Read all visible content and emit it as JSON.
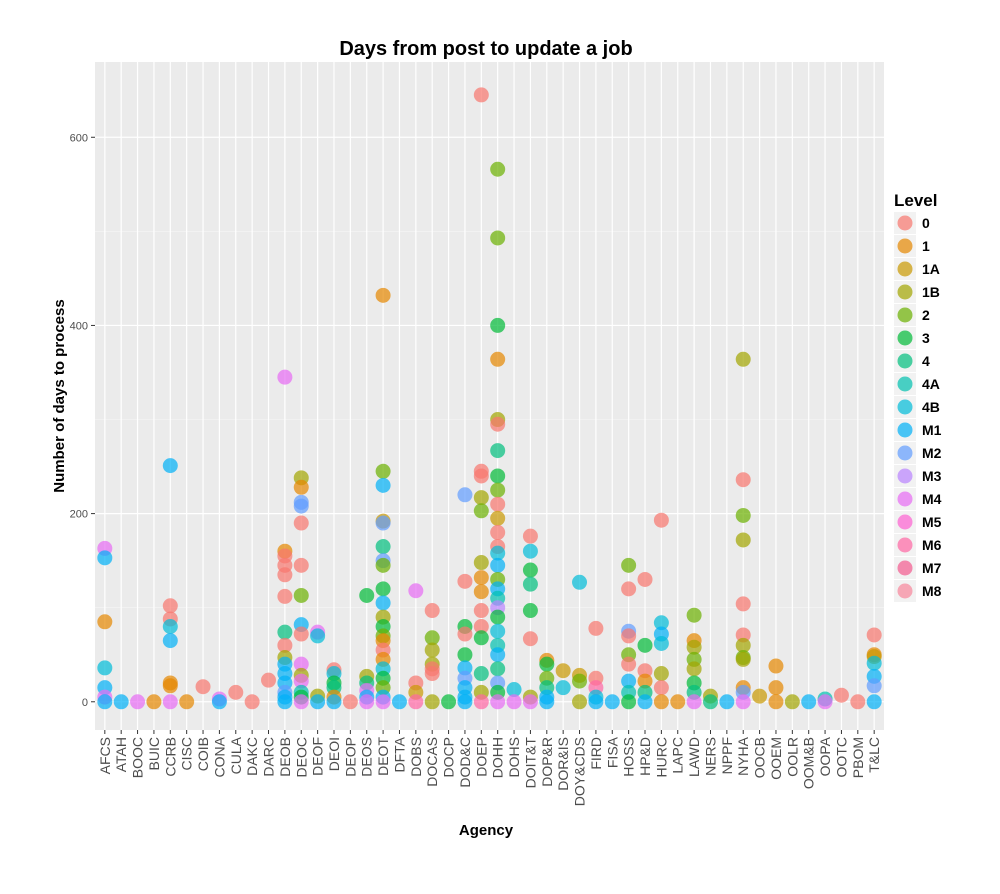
{
  "chart_data": {
    "type": "scatter",
    "title": "Days from post to update a job",
    "xlabel": "Agency",
    "ylabel": "Number of days to process",
    "ylim": [
      -30,
      680
    ],
    "yticks": [
      0,
      200,
      400,
      600
    ],
    "grid": true,
    "legend_position": "right",
    "legend_title": "Level",
    "categories": [
      "AFCS",
      "ATAH",
      "BOOC",
      "BUIC",
      "CCRB",
      "CISC",
      "COIB",
      "CONA",
      "CULA",
      "DAKC",
      "DARC",
      "DEOB",
      "DEOC",
      "DEOF",
      "DEOI",
      "DEOP",
      "DEOS",
      "DEOT",
      "DFTA",
      "DOBS",
      "DOCAS",
      "DOCP",
      "DOD&C",
      "DOEP",
      "DOHH",
      "DOHS",
      "DOIT&T",
      "DOP&R",
      "DOR&IS",
      "DOY&CDS",
      "FIRD",
      "FISA",
      "HOSS",
      "HP&D",
      "HURC",
      "LAPC",
      "LAWD",
      "NERS",
      "NPPF",
      "NYHA",
      "OOCB",
      "OOEM",
      "OOLR",
      "OOM&B",
      "OOPA",
      "OOTC",
      "PBOM",
      "T&LC"
    ],
    "levels": [
      "0",
      "1",
      "1A",
      "1B",
      "2",
      "3",
      "4",
      "4A",
      "4B",
      "M1",
      "M2",
      "M3",
      "M4",
      "M5",
      "M6",
      "M7",
      "M8"
    ],
    "level_colors": [
      "#F8766D",
      "#E58700",
      "#C99800",
      "#A3A500",
      "#6BB100",
      "#00BA38",
      "#00BF7D",
      "#00C0AF",
      "#00BCD8",
      "#00B0F6",
      "#619CFF",
      "#B983FF",
      "#E76BF3",
      "#FD61D1",
      "#FF67A4",
      "#F45A8F",
      "#F8869B"
    ],
    "points": [
      [
        "AFCS",
        "M4",
        163
      ],
      [
        "AFCS",
        "M1",
        153
      ],
      [
        "AFCS",
        "1",
        85
      ],
      [
        "AFCS",
        "4B",
        36
      ],
      [
        "AFCS",
        "M1",
        15
      ],
      [
        "AFCS",
        "M4",
        5
      ],
      [
        "AFCS",
        "M1",
        0
      ],
      [
        "ATAH",
        "M1",
        0
      ],
      [
        "BOOC",
        "M4",
        0
      ],
      [
        "BUIC",
        "1",
        0
      ],
      [
        "CCRB",
        "M1",
        251
      ],
      [
        "CCRB",
        "0",
        102
      ],
      [
        "CCRB",
        "0",
        88
      ],
      [
        "CCRB",
        "4B",
        80
      ],
      [
        "CCRB",
        "M1",
        65
      ],
      [
        "CCRB",
        "1",
        20
      ],
      [
        "CCRB",
        "1",
        17
      ],
      [
        "CCRB",
        "M4",
        0
      ],
      [
        "CISC",
        "1",
        0
      ],
      [
        "COIB",
        "0",
        16
      ],
      [
        "CONA",
        "M4",
        3
      ],
      [
        "CONA",
        "M1",
        0
      ],
      [
        "CULA",
        "0",
        10
      ],
      [
        "DAKC",
        "0",
        0
      ],
      [
        "DARC",
        "0",
        23
      ],
      [
        "DEOB",
        "M4",
        345
      ],
      [
        "DEOB",
        "1",
        160
      ],
      [
        "DEOB",
        "0",
        155
      ],
      [
        "DEOB",
        "0",
        145
      ],
      [
        "DEOB",
        "0",
        135
      ],
      [
        "DEOB",
        "0",
        112
      ],
      [
        "DEOB",
        "4",
        74
      ],
      [
        "DEOB",
        "0",
        60
      ],
      [
        "DEOB",
        "1B",
        47
      ],
      [
        "DEOB",
        "M1",
        40
      ],
      [
        "DEOB",
        "M1",
        30
      ],
      [
        "DEOB",
        "M1",
        20
      ],
      [
        "DEOB",
        "M2",
        10
      ],
      [
        "DEOB",
        "M1",
        5
      ],
      [
        "DEOB",
        "M1",
        0
      ],
      [
        "DEOC",
        "1B",
        238
      ],
      [
        "DEOC",
        "1",
        228
      ],
      [
        "DEOC",
        "M2",
        212
      ],
      [
        "DEOC",
        "M2",
        208
      ],
      [
        "DEOC",
        "0",
        190
      ],
      [
        "DEOC",
        "0",
        145
      ],
      [
        "DEOC",
        "2",
        113
      ],
      [
        "DEOC",
        "M1",
        82
      ],
      [
        "DEOC",
        "0",
        72
      ],
      [
        "DEOC",
        "M4",
        40
      ],
      [
        "DEOC",
        "1B",
        28
      ],
      [
        "DEOC",
        "M4",
        22
      ],
      [
        "DEOC",
        "4A",
        10
      ],
      [
        "DEOC",
        "3",
        5
      ],
      [
        "DEOC",
        "M4",
        0
      ],
      [
        "DEOF",
        "M4",
        74
      ],
      [
        "DEOF",
        "4B",
        70
      ],
      [
        "DEOF",
        "1B",
        6
      ],
      [
        "DEOF",
        "M1",
        0
      ],
      [
        "DEOI",
        "0",
        34
      ],
      [
        "DEOI",
        "4B",
        30
      ],
      [
        "DEOI",
        "3",
        20
      ],
      [
        "DEOI",
        "4",
        15
      ],
      [
        "DEOI",
        "1",
        5
      ],
      [
        "DEOI",
        "M1",
        0
      ],
      [
        "DEOP",
        "0",
        0
      ],
      [
        "DEOS",
        "3",
        113
      ],
      [
        "DEOS",
        "1B",
        27
      ],
      [
        "DEOS",
        "4",
        20
      ],
      [
        "DEOS",
        "M4",
        12
      ],
      [
        "DEOS",
        "M1",
        5
      ],
      [
        "DEOS",
        "M4",
        0
      ],
      [
        "DEOT",
        "1",
        432
      ],
      [
        "DEOT",
        "2",
        245
      ],
      [
        "DEOT",
        "M1",
        230
      ],
      [
        "DEOT",
        "1A",
        192
      ],
      [
        "DEOT",
        "M2",
        190
      ],
      [
        "DEOT",
        "4",
        165
      ],
      [
        "DEOT",
        "M2",
        150
      ],
      [
        "DEOT",
        "2",
        145
      ],
      [
        "DEOT",
        "3",
        120
      ],
      [
        "DEOT",
        "M1",
        105
      ],
      [
        "DEOT",
        "1B",
        90
      ],
      [
        "DEOT",
        "3",
        80
      ],
      [
        "DEOT",
        "2",
        70
      ],
      [
        "DEOT",
        "1",
        65
      ],
      [
        "DEOT",
        "0",
        55
      ],
      [
        "DEOT",
        "1",
        45
      ],
      [
        "DEOT",
        "4B",
        35
      ],
      [
        "DEOT",
        "3",
        25
      ],
      [
        "DEOT",
        "2",
        15
      ],
      [
        "DEOT",
        "M1",
        5
      ],
      [
        "DEOT",
        "M4",
        0
      ],
      [
        "DFTA",
        "M1",
        0
      ],
      [
        "DOBS",
        "M4",
        118
      ],
      [
        "DOBS",
        "0",
        20
      ],
      [
        "DOBS",
        "1A",
        10
      ],
      [
        "DOBS",
        "M6",
        0
      ],
      [
        "DOCAS",
        "2",
        68
      ],
      [
        "DOCAS",
        "1B",
        55
      ],
      [
        "DOCAS",
        "1B",
        40
      ],
      [
        "DOCAS",
        "0",
        97
      ],
      [
        "DOCAS",
        "0",
        35
      ],
      [
        "DOCAS",
        "0",
        30
      ],
      [
        "DOCAS",
        "1B",
        0
      ],
      [
        "DOCP",
        "3",
        0
      ],
      [
        "DOD&C",
        "M2",
        220
      ],
      [
        "DOD&C",
        "0",
        128
      ],
      [
        "DOD&C",
        "3",
        80
      ],
      [
        "DOD&C",
        "0",
        72
      ],
      [
        "DOD&C",
        "3",
        50
      ],
      [
        "DOD&C",
        "M1",
        36
      ],
      [
        "DOD&C",
        "M2",
        25
      ],
      [
        "DOD&C",
        "M1",
        15
      ],
      [
        "DOD&C",
        "M1",
        5
      ],
      [
        "DOD&C",
        "M1",
        0
      ],
      [
        "DOEP",
        "0",
        645
      ],
      [
        "DOEP",
        "0",
        245
      ],
      [
        "DOEP",
        "0",
        240
      ],
      [
        "DOEP",
        "1B",
        217
      ],
      [
        "DOEP",
        "2",
        203
      ],
      [
        "DOEP",
        "1B",
        148
      ],
      [
        "DOEP",
        "1",
        132
      ],
      [
        "DOEP",
        "1",
        117
      ],
      [
        "DOEP",
        "0",
        97
      ],
      [
        "DOEP",
        "0",
        80
      ],
      [
        "DOEP",
        "3",
        68
      ],
      [
        "DOEP",
        "4",
        30
      ],
      [
        "DOEP",
        "1B",
        10
      ],
      [
        "DOEP",
        "M6",
        0
      ],
      [
        "DOHH",
        "2",
        566
      ],
      [
        "DOHH",
        "2",
        493
      ],
      [
        "DOHH",
        "3",
        400
      ],
      [
        "DOHH",
        "1",
        364
      ],
      [
        "DOHH",
        "1B",
        300
      ],
      [
        "DOHH",
        "0",
        295
      ],
      [
        "DOHH",
        "4",
        267
      ],
      [
        "DOHH",
        "3",
        240
      ],
      [
        "DOHH",
        "2",
        225
      ],
      [
        "DOHH",
        "0",
        210
      ],
      [
        "DOHH",
        "1A",
        195
      ],
      [
        "DOHH",
        "0",
        180
      ],
      [
        "DOHH",
        "0",
        165
      ],
      [
        "DOHH",
        "4B",
        158
      ],
      [
        "DOHH",
        "M1",
        145
      ],
      [
        "DOHH",
        "2",
        130
      ],
      [
        "DOHH",
        "M1",
        120
      ],
      [
        "DOHH",
        "4A",
        110
      ],
      [
        "DOHH",
        "M3",
        100
      ],
      [
        "DOHH",
        "3",
        90
      ],
      [
        "DOHH",
        "4B",
        75
      ],
      [
        "DOHH",
        "4A",
        60
      ],
      [
        "DOHH",
        "M1",
        50
      ],
      [
        "DOHH",
        "4",
        35
      ],
      [
        "DOHH",
        "M2",
        20
      ],
      [
        "DOHH",
        "3",
        10
      ],
      [
        "DOHH",
        "M4",
        0
      ],
      [
        "DOHS",
        "4B",
        13
      ],
      [
        "DOHS",
        "M4",
        0
      ],
      [
        "DOIT&T",
        "0",
        176
      ],
      [
        "DOIT&T",
        "4B",
        160
      ],
      [
        "DOIT&T",
        "3",
        140
      ],
      [
        "DOIT&T",
        "4",
        125
      ],
      [
        "DOIT&T",
        "3",
        97
      ],
      [
        "DOIT&T",
        "0",
        67
      ],
      [
        "DOIT&T",
        "1B",
        5
      ],
      [
        "DOIT&T",
        "M4",
        0
      ],
      [
        "DOP&R",
        "1",
        44
      ],
      [
        "DOP&R",
        "3",
        40
      ],
      [
        "DOP&R",
        "2",
        25
      ],
      [
        "DOP&R",
        "4",
        15
      ],
      [
        "DOP&R",
        "M1",
        5
      ],
      [
        "DOP&R",
        "M1",
        0
      ],
      [
        "DOR&IS",
        "1A",
        33
      ],
      [
        "DOR&IS",
        "4B",
        15
      ],
      [
        "DOY&CDS",
        "4B",
        127
      ],
      [
        "DOY&CDS",
        "1A",
        28
      ],
      [
        "DOY&CDS",
        "2",
        22
      ],
      [
        "DOY&CDS",
        "1B",
        0
      ],
      [
        "FIRD",
        "0",
        78
      ],
      [
        "FIRD",
        "0",
        25
      ],
      [
        "FIRD",
        "M6",
        15
      ],
      [
        "FIRD",
        "4B",
        5
      ],
      [
        "FIRD",
        "M1",
        0
      ],
      [
        "FISA",
        "M1",
        0
      ],
      [
        "HOSS",
        "2",
        145
      ],
      [
        "HOSS",
        "0",
        120
      ],
      [
        "HOSS",
        "M2",
        75
      ],
      [
        "HOSS",
        "0",
        70
      ],
      [
        "HOSS",
        "2",
        50
      ],
      [
        "HOSS",
        "0",
        40
      ],
      [
        "HOSS",
        "M1",
        22
      ],
      [
        "HOSS",
        "4A",
        10
      ],
      [
        "HOSS",
        "3",
        0
      ],
      [
        "HP&D",
        "0",
        130
      ],
      [
        "HP&D",
        "3",
        60
      ],
      [
        "HP&D",
        "0",
        33
      ],
      [
        "HP&D",
        "1",
        22
      ],
      [
        "HP&D",
        "4",
        10
      ],
      [
        "HP&D",
        "M1",
        0
      ],
      [
        "HURC",
        "0",
        193
      ],
      [
        "HURC",
        "4B",
        84
      ],
      [
        "HURC",
        "M1",
        72
      ],
      [
        "HURC",
        "4B",
        62
      ],
      [
        "HURC",
        "1B",
        30
      ],
      [
        "HURC",
        "0",
        15
      ],
      [
        "HURC",
        "1",
        0
      ],
      [
        "LAPC",
        "1",
        0
      ],
      [
        "LAWD",
        "2",
        92
      ],
      [
        "LAWD",
        "1",
        65
      ],
      [
        "LAWD",
        "1B",
        58
      ],
      [
        "LAWD",
        "2",
        45
      ],
      [
        "LAWD",
        "1B",
        35
      ],
      [
        "LAWD",
        "3",
        20
      ],
      [
        "LAWD",
        "4",
        10
      ],
      [
        "LAWD",
        "M4",
        0
      ],
      [
        "NERS",
        "1B",
        6
      ],
      [
        "NERS",
        "4",
        0
      ],
      [
        "NPPF",
        "M1",
        0
      ],
      [
        "NYHA",
        "1B",
        364
      ],
      [
        "NYHA",
        "0",
        236
      ],
      [
        "NYHA",
        "2",
        198
      ],
      [
        "NYHA",
        "1B",
        172
      ],
      [
        "NYHA",
        "0",
        104
      ],
      [
        "NYHA",
        "0",
        71
      ],
      [
        "NYHA",
        "1B",
        60
      ],
      [
        "NYHA",
        "2",
        47
      ],
      [
        "NYHA",
        "1B",
        45
      ],
      [
        "NYHA",
        "1",
        15
      ],
      [
        "NYHA",
        "M2",
        10
      ],
      [
        "NYHA",
        "M4",
        0
      ],
      [
        "OOCB",
        "1A",
        6
      ],
      [
        "OOEM",
        "1",
        38
      ],
      [
        "OOEM",
        "1",
        15
      ],
      [
        "OOEM",
        "1",
        0
      ],
      [
        "OOLR",
        "1B",
        0
      ],
      [
        "OOM&B",
        "M1",
        0
      ],
      [
        "OOPA",
        "4A",
        3
      ],
      [
        "OOPA",
        "M4",
        0
      ],
      [
        "OOTC",
        "0",
        7
      ],
      [
        "PBOM",
        "0",
        0
      ],
      [
        "T&LC",
        "0",
        71
      ],
      [
        "T&LC",
        "1",
        50
      ],
      [
        "T&LC",
        "1A",
        48
      ],
      [
        "T&LC",
        "4B",
        41
      ],
      [
        "T&LC",
        "M1",
        27
      ],
      [
        "T&LC",
        "M2",
        17
      ],
      [
        "T&LC",
        "M1",
        0
      ]
    ]
  }
}
